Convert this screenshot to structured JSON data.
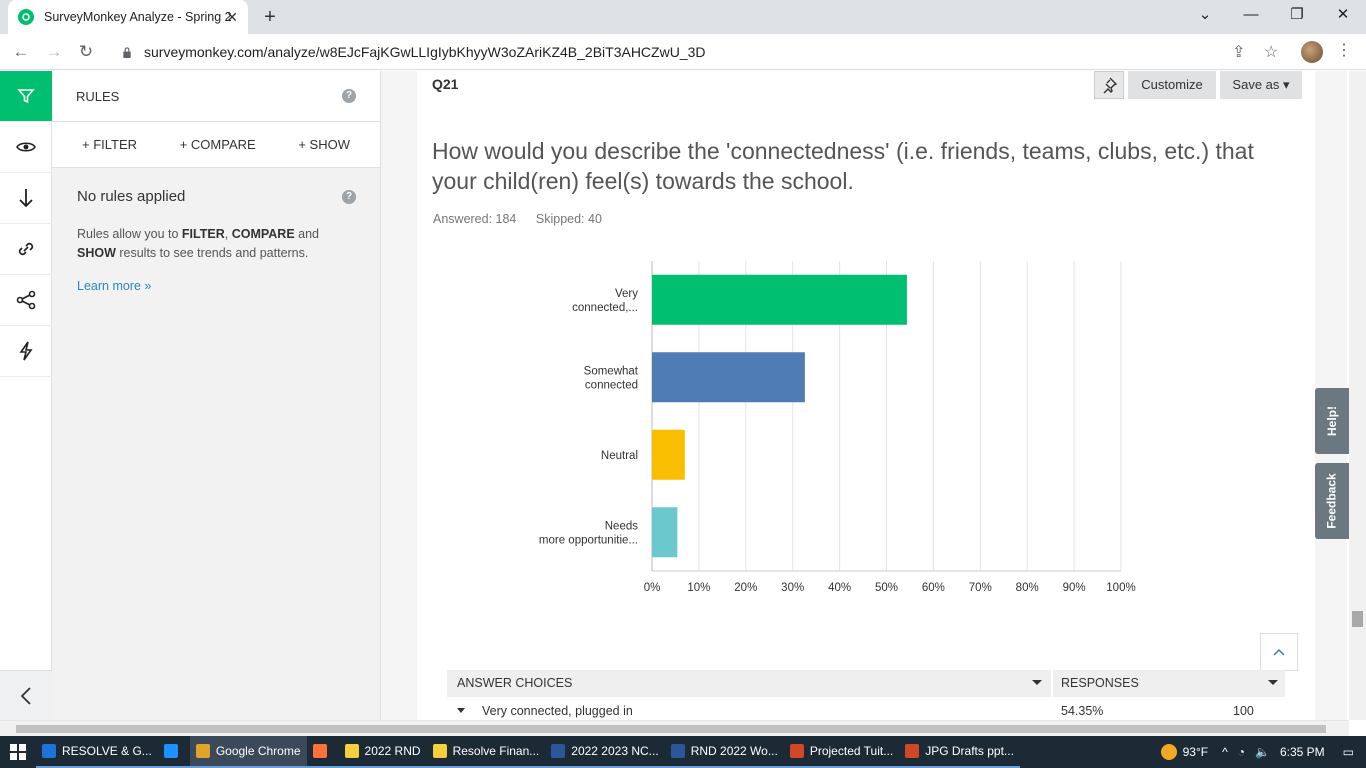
{
  "browser": {
    "tab_title": "SurveyMonkey Analyze - Spring 2",
    "url": "surveymonkey.com/analyze/w8EJcFajKGwLLIgIybKhyyW3oZAriKZ4B_2BiT3AHCZwU_3D",
    "accent": "#00bf6f"
  },
  "rules_panel": {
    "title": "RULES",
    "actions": [
      "+ FILTER",
      "+ COMPARE",
      "+ SHOW"
    ],
    "no_rules_title": "No rules applied",
    "desc_1": "Rules allow you to ",
    "desc_filter": "FILTER",
    "desc_2": ", ",
    "desc_compare": "COMPARE",
    "desc_3": " and ",
    "desc_show": "SHOW",
    "desc_4": " results to see trends and patterns.",
    "learn_more": "Learn more »"
  },
  "question": {
    "number": "Q21",
    "customize": "Customize",
    "save_as": "Save as",
    "text": "How would you describe the 'connectedness' (i.e. friends, teams, clubs, etc.) that your child(ren) feel(s) towards the school.",
    "answered": "Answered: 184",
    "skipped": "Skipped: 40"
  },
  "chart_data": {
    "type": "bar",
    "orientation": "horizontal",
    "categories": [
      "Very connected,...",
      "Somewhat connected",
      "Neutral",
      "Needs more opportunitie..."
    ],
    "values": [
      54.35,
      32.6,
      7.0,
      5.4
    ],
    "colors": [
      "#00bf6f",
      "#507cb6",
      "#f9be00",
      "#6bc8cd"
    ],
    "xlim": [
      0,
      100
    ],
    "ticks": [
      "0%",
      "10%",
      "20%",
      "30%",
      "40%",
      "50%",
      "60%",
      "70%",
      "80%",
      "90%",
      "100%"
    ],
    "grid": true
  },
  "table": {
    "col_choices": "ANSWER CHOICES",
    "col_responses": "RESPONSES",
    "rows": [
      {
        "label": "Very connected, plugged in",
        "pct": "54.35%",
        "count": "100"
      }
    ]
  },
  "side_tabs": {
    "help": "Help!",
    "feedback": "Feedback"
  },
  "taskbar": {
    "items": [
      {
        "label": "RESOLVE & G...",
        "color": "#1e73d8"
      },
      {
        "label": "",
        "color": "#1e90ff"
      },
      {
        "label": "Google Chrome",
        "color": "#e0a42a"
      },
      {
        "label": "",
        "color": "#ff7139"
      },
      {
        "label": "2022 RND",
        "color": "#f4d03f"
      },
      {
        "label": "Resolve Finan...",
        "color": "#f4d03f"
      },
      {
        "label": "2022 2023 NC...",
        "color": "#2b579a"
      },
      {
        "label": "RND 2022 Wo...",
        "color": "#2b579a"
      },
      {
        "label": "Projected Tuit...",
        "color": "#d24726"
      },
      {
        "label": "JPG Drafts ppt...",
        "color": "#d24726"
      }
    ],
    "weather": "93°F",
    "time": "6:35 PM"
  }
}
